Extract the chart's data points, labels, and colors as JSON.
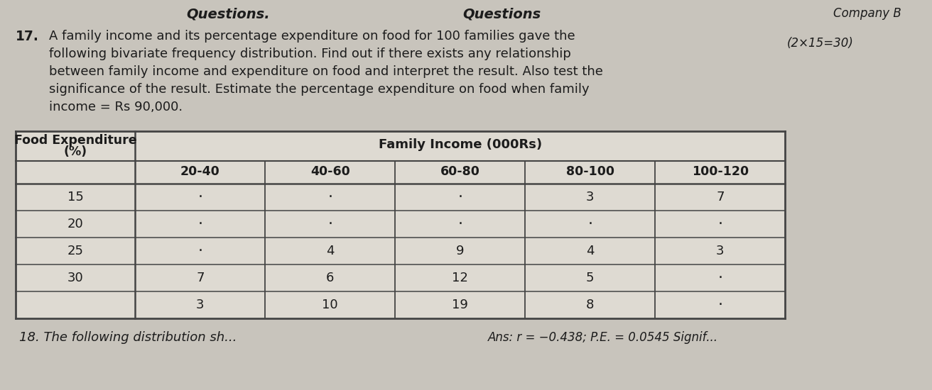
{
  "bg_color": "#c8c4bc",
  "header_left": "Questions.",
  "header_center": "Questions",
  "header_right": "Company B",
  "question_num": "17.",
  "q_line1": "A family income and its percentage expenditure on food for 100 families gave the",
  "q_line2": "following bivariate frequency distribution. Find out if there exists any relationship",
  "q_line3": "between family income and expenditure on food and interpret the result. Also test the",
  "q_line4": "significance of the result. Estimate the percentage expenditure on food when family",
  "q_line5": "income = Rs 90,000.",
  "marks": "(2×15=30)",
  "col0_label1": "Food Expenditure",
  "col0_label2": "(%)",
  "fi_label": "Family Income (000Rs)",
  "sub_cols": [
    "20-40",
    "40-60",
    "60-80",
    "80-100",
    "100-120"
  ],
  "food_exp": [
    "15",
    "20",
    "25",
    "30",
    ""
  ],
  "table_data": [
    [
      "-",
      "-",
      "-",
      "3",
      "7"
    ],
    [
      "-",
      "-",
      "-",
      "-",
      "-"
    ],
    [
      "-",
      "4",
      "9",
      "4",
      "3"
    ],
    [
      "7",
      "6",
      "12",
      "5",
      "-"
    ],
    [
      "3",
      "10",
      "19",
      "8",
      "-"
    ]
  ],
  "footer_left": "18. The following distribution sh...",
  "footer_right": "Ans: r = −0.438; P.E. = 0.0545 Signif...",
  "text_color": "#1c1c1c",
  "table_bg": "#dedad2",
  "line_color": "#444444"
}
